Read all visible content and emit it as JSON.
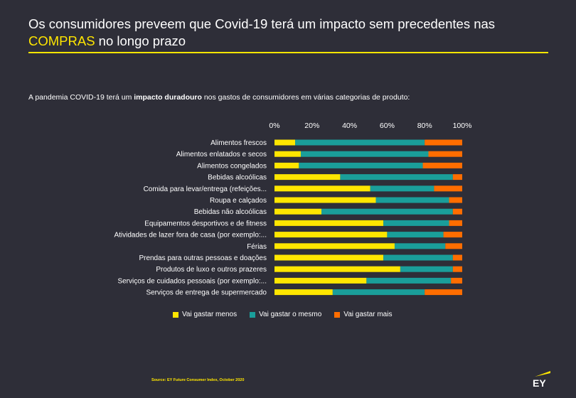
{
  "title": {
    "part1": "Os consumidores preveem que Covid-19 terá um impacto sem precedentes nas ",
    "highlight": "COMPRAS",
    "part2": " no longo prazo"
  },
  "subtitle": {
    "pre": "A pandemia COVID-19 terá um ",
    "bold": "impacto duradouro",
    "post": " nos gastos de consumidores em várias categorias de produto:"
  },
  "source": "Source: EY Future Consumer Index, October 2020",
  "logo": "EY",
  "colors": {
    "background": "#2e2e38",
    "accent": "#ffe600",
    "menos": "#ffe600",
    "mesmo": "#1a9e9a",
    "mais": "#ff6d00"
  },
  "chart_data": {
    "type": "bar",
    "orientation": "horizontal",
    "stacked": "percent",
    "xlim": [
      0,
      100
    ],
    "ticks": [
      "0%",
      "20%",
      "40%",
      "60%",
      "80%",
      "100%"
    ],
    "tick_values": [
      0,
      20,
      40,
      60,
      80,
      100
    ],
    "grid": false,
    "legend_position": "bottom",
    "categories": [
      "Alimentos frescos",
      "Alimentos enlatados e secos",
      "Alimentos congelados",
      "Bebidas alcoólicas",
      "Comida para levar/entrega (refeições...",
      "Roupa e calçados",
      "Bebidas não alcoólicas",
      "Equipamentos desportivos e de fitness",
      "Atividades de lazer fora de casa (por exemplo:...",
      "Férias",
      "Prendas para outras pessoas e doações",
      "Produtos de luxo e outros prazeres",
      "Serviços de cuidados pessoais (por exemplo:...",
      "Serviços de entrega de supermercado"
    ],
    "series": [
      {
        "name": "Vai gastar menos",
        "color": "#ffe600",
        "values": [
          11,
          14,
          13,
          35,
          51,
          54,
          25,
          58,
          60,
          64,
          58,
          67,
          49,
          31
        ]
      },
      {
        "name": "Vai gastar o mesmo",
        "color": "#1a9e9a",
        "values": [
          69,
          68,
          66,
          60,
          34,
          39,
          70,
          35,
          30,
          27,
          37,
          28,
          45,
          49
        ]
      },
      {
        "name": "Vai gastar mais",
        "color": "#ff6d00",
        "values": [
          20,
          18,
          21,
          5,
          15,
          7,
          5,
          7,
          10,
          9,
          5,
          5,
          6,
          20
        ]
      }
    ]
  }
}
